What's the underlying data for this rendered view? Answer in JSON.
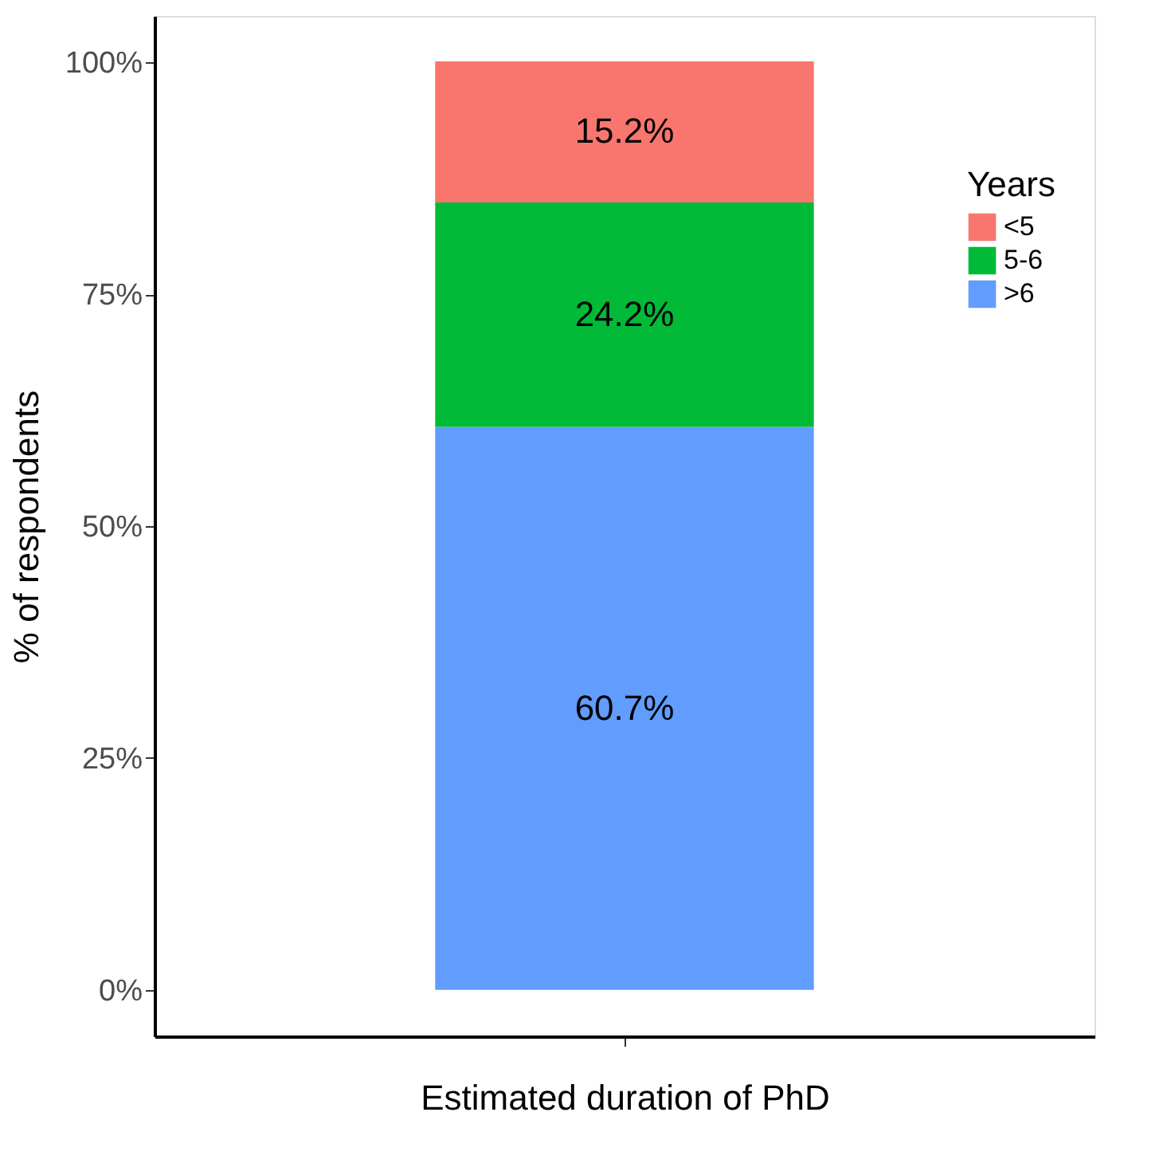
{
  "chart_data": {
    "type": "bar",
    "stacked": true,
    "xlabel": "Estimated duration of PhD",
    "ylabel": "% of respondents",
    "legend_title": "Years",
    "legend": "right",
    "grid": false,
    "tick_labels": "y",
    "categories": [
      null
    ],
    "series": [
      {
        "name": ">6",
        "color": "#619cff",
        "values": [
          60.7
        ],
        "value_labels": [
          "60.7%"
        ]
      },
      {
        "name": "5-6",
        "color": "#00ba38",
        "values": [
          24.2
        ],
        "value_labels": [
          "24.2%"
        ]
      },
      {
        "name": "<5",
        "color": "#f8766d",
        "values": [
          15.2
        ],
        "value_labels": [
          "15.2%"
        ]
      }
    ],
    "ylim": [
      -5,
      105
    ],
    "yticks": [
      {
        "value": 0,
        "label": "0%"
      },
      {
        "value": 25,
        "label": "25%"
      },
      {
        "value": 50,
        "label": "50%"
      },
      {
        "value": 75,
        "label": "75%"
      },
      {
        "value": 100,
        "label": "100%"
      }
    ]
  }
}
